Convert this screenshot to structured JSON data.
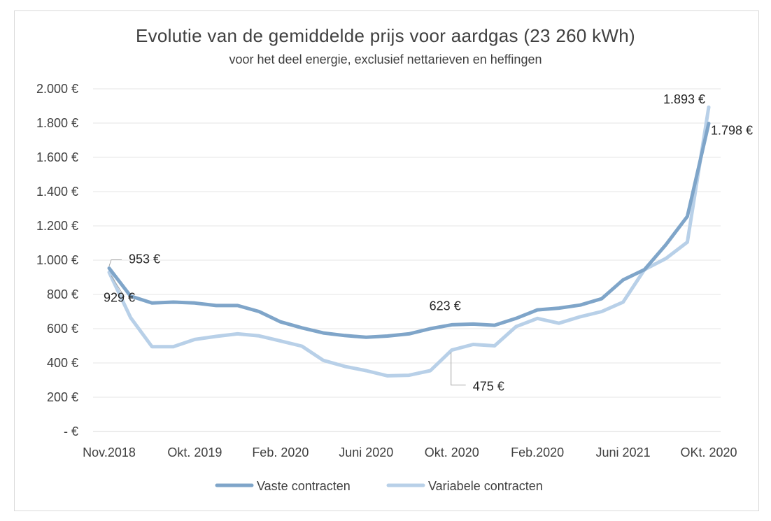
{
  "chart_data": {
    "type": "line",
    "title": "Evolutie van de gemiddelde prijs voor aardgas (23 260 kWh)",
    "subtitle": "voor het deel energie, exclusief nettarieven en heffingen",
    "ylim": [
      0,
      2000
    ],
    "y_ticks": [
      {
        "value": 0,
        "label": "-  €"
      },
      {
        "value": 200,
        "label": "200 €"
      },
      {
        "value": 400,
        "label": "400 €"
      },
      {
        "value": 600,
        "label": "600 €"
      },
      {
        "value": 800,
        "label": "800 €"
      },
      {
        "value": 1000,
        "label": "1.000 €"
      },
      {
        "value": 1200,
        "label": "1.200 €"
      },
      {
        "value": 1400,
        "label": "1.400 €"
      },
      {
        "value": 1600,
        "label": "1.600 €"
      },
      {
        "value": 1800,
        "label": "1.800 €"
      },
      {
        "value": 2000,
        "label": "2.000 €"
      }
    ],
    "x_tick_labels": [
      {
        "index": 0,
        "label": "Nov.2018"
      },
      {
        "index": 4,
        "label": "Okt. 2019"
      },
      {
        "index": 8,
        "label": "Feb. 2020"
      },
      {
        "index": 12,
        "label": "Juni 2020"
      },
      {
        "index": 16,
        "label": "Okt. 2020"
      },
      {
        "index": 20,
        "label": "Feb.2020"
      },
      {
        "index": 24,
        "label": "Juni 2021"
      },
      {
        "index": 28,
        "label": "OKt. 2020"
      }
    ],
    "grid": true,
    "legend_position": "bottom",
    "series": [
      {
        "name": "Vaste contracten",
        "color": "#7fa5c9",
        "values": [
          953,
          790,
          750,
          755,
          750,
          735,
          735,
          700,
          640,
          605,
          575,
          560,
          550,
          557,
          570,
          600,
          623,
          627,
          620,
          660,
          710,
          720,
          738,
          775,
          885,
          945,
          1090,
          1255,
          1798
        ]
      },
      {
        "name": "Variabele contracten",
        "color": "#b8d0e8",
        "values": [
          929,
          665,
          495,
          495,
          537,
          555,
          570,
          558,
          528,
          498,
          415,
          380,
          355,
          325,
          328,
          355,
          475,
          508,
          500,
          612,
          660,
          632,
          670,
          700,
          755,
          945,
          1010,
          1105,
          1893
        ]
      }
    ],
    "annotations": [
      {
        "series": 0,
        "index": 0,
        "label": "953 €"
      },
      {
        "series": 1,
        "index": 0,
        "label": "929 €"
      },
      {
        "series": 0,
        "index": 16,
        "label": "623 €"
      },
      {
        "series": 1,
        "index": 16,
        "label": "475 €"
      },
      {
        "series": 1,
        "index": 28,
        "label": "1.893 €"
      },
      {
        "series": 0,
        "index": 28,
        "label": "1.798 €"
      }
    ]
  }
}
